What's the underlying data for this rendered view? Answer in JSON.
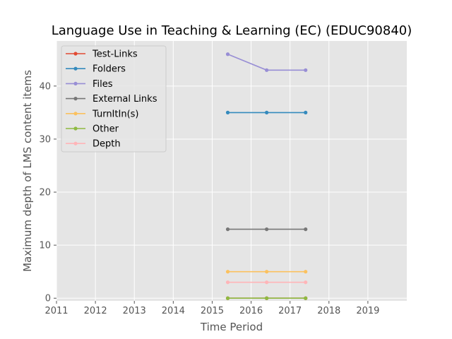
{
  "chart_data": {
    "type": "line",
    "title": "Language Use in Teaching & Learning (EC) (EDUC90840)",
    "xlabel": "Time Period",
    "ylabel": "Maximum depth of LMS content items",
    "xlim": [
      2011,
      2020
    ],
    "ylim": [
      -0.5,
      48.5
    ],
    "xticks": [
      2011,
      2012,
      2013,
      2014,
      2015,
      2016,
      2017,
      2018,
      2019
    ],
    "yticks": [
      0,
      10,
      20,
      30,
      40
    ],
    "grid": true,
    "legend_position": "top-left",
    "x": [
      2015.4,
      2016.4,
      2017.4
    ],
    "series": [
      {
        "name": "Test-Links",
        "color": "#e24a33",
        "values": [
          0,
          0,
          0
        ]
      },
      {
        "name": "Folders",
        "color": "#348abd",
        "values": [
          35,
          35,
          35
        ]
      },
      {
        "name": "Files",
        "color": "#988ed5",
        "values": [
          46,
          43,
          43
        ]
      },
      {
        "name": "External Links",
        "color": "#777777",
        "values": [
          13,
          13,
          13
        ]
      },
      {
        "name": "TurnItIn(s)",
        "color": "#fbc15e",
        "values": [
          5,
          5,
          5
        ]
      },
      {
        "name": "Other",
        "color": "#8eba42",
        "values": [
          0,
          0,
          0
        ]
      },
      {
        "name": "Depth",
        "color": "#ffb5b8",
        "values": [
          3,
          3,
          3
        ]
      }
    ]
  }
}
